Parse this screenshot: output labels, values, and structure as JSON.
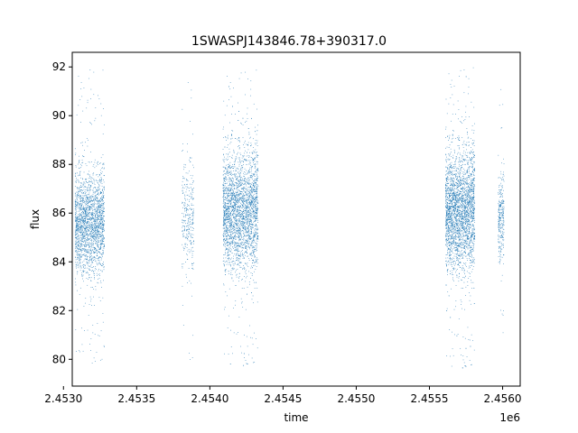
{
  "chart_data": {
    "type": "scatter",
    "title": "1SWASPJ143846.78+390317.0",
    "xlabel": "time",
    "ylabel": "flux",
    "x_offset_label": "1e6",
    "xlim": [
      2.45306,
      2.45612
    ],
    "ylim": [
      78.9,
      92.6
    ],
    "x_ticks": [
      2.453,
      2.4535,
      2.454,
      2.4545,
      2.455,
      2.4555,
      2.456
    ],
    "x_tick_labels": [
      "2.4530",
      "2.4535",
      "2.4540",
      "2.4545",
      "2.4550",
      "2.4555",
      "2.4560"
    ],
    "y_ticks": [
      80,
      82,
      84,
      86,
      88,
      90,
      92
    ],
    "y_tick_labels": [
      "80",
      "82",
      "84",
      "86",
      "88",
      "90",
      "92"
    ],
    "grid": false,
    "marker_color": "#1f77b4",
    "clusters": [
      {
        "x_center": 2.45318,
        "x_spread": 0.0001,
        "y_mean": 85.6,
        "y_sd": 1.0,
        "y_min": 79.7,
        "y_max": 91.9,
        "n_points": 2200
      },
      {
        "x_center": 2.45385,
        "x_spread": 4e-05,
        "y_mean": 85.8,
        "y_sd": 1.1,
        "y_min": 79.8,
        "y_max": 91.5,
        "n_points": 320
      },
      {
        "x_center": 2.45421,
        "x_spread": 0.00012,
        "y_mean": 86.1,
        "y_sd": 1.2,
        "y_min": 79.6,
        "y_max": 91.9,
        "n_points": 3000
      },
      {
        "x_center": 2.45571,
        "x_spread": 0.0001,
        "y_mean": 86.1,
        "y_sd": 1.2,
        "y_min": 79.5,
        "y_max": 92.0,
        "n_points": 3000
      },
      {
        "x_center": 2.45599,
        "x_spread": 2e-05,
        "y_mean": 85.8,
        "y_sd": 0.9,
        "y_min": 80.7,
        "y_max": 91.4,
        "n_points": 300
      }
    ]
  }
}
